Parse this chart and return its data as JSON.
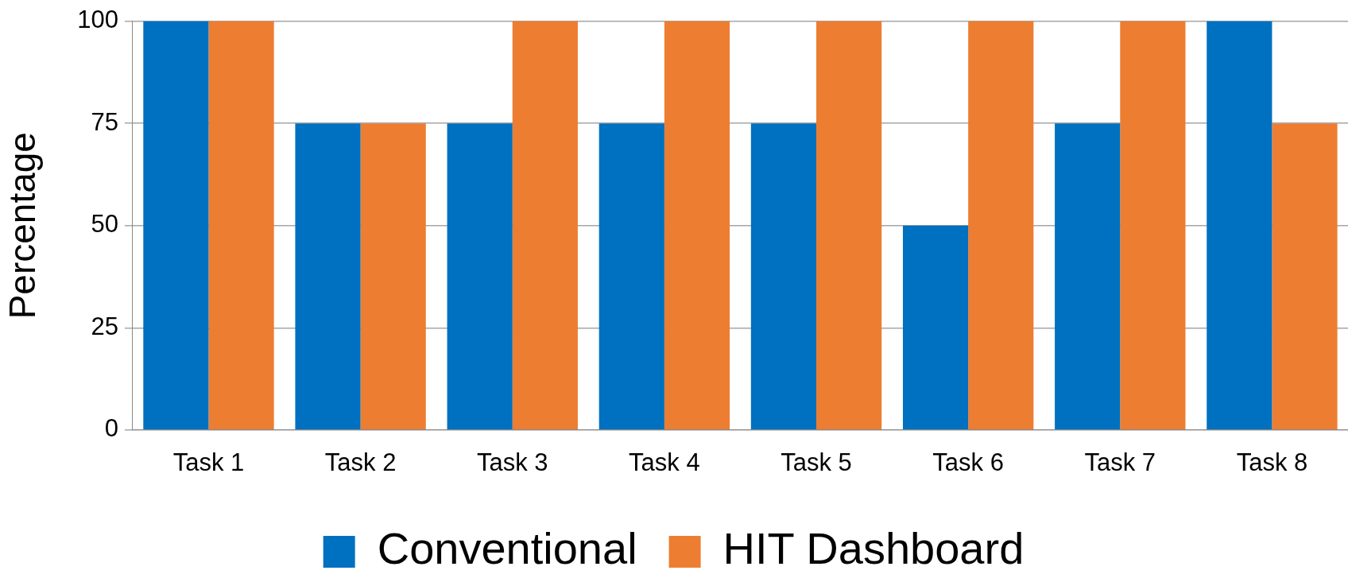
{
  "chart_data": {
    "type": "bar",
    "ylabel": "Percentage",
    "categories": [
      "Task 1",
      "Task 2",
      "Task 3",
      "Task 4",
      "Task 5",
      "Task 6",
      "Task 7",
      "Task 8"
    ],
    "series": [
      {
        "name": "Conventional",
        "color": "#0070c0",
        "values": [
          100,
          75,
          75,
          75,
          75,
          50,
          75,
          100
        ]
      },
      {
        "name": "HIT Dashboard",
        "color": "#ed7d31",
        "values": [
          100,
          75,
          100,
          100,
          100,
          100,
          100,
          75
        ]
      }
    ],
    "ylim": [
      0,
      100
    ],
    "yticks": [
      0,
      25,
      50,
      75,
      100
    ],
    "grid": "y",
    "legend": "bottom"
  }
}
